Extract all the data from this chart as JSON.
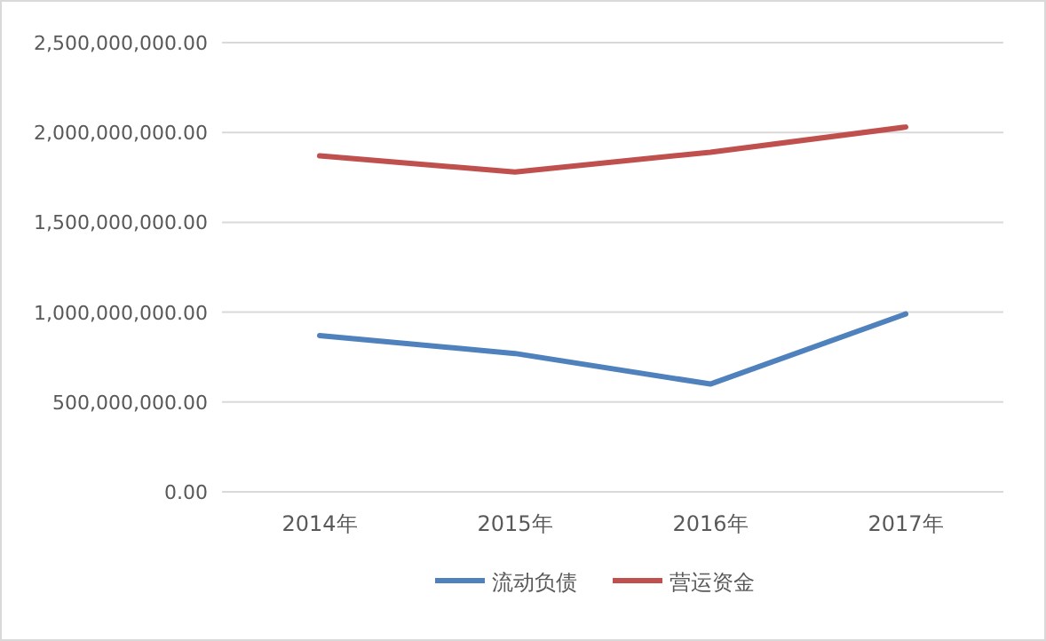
{
  "chart_data": {
    "type": "line",
    "categories": [
      "2014年",
      "2015年",
      "2016年",
      "2017年"
    ],
    "series": [
      {
        "name": "流动负债",
        "color": "#4f81bd",
        "values": [
          870000000,
          770000000,
          600000000,
          990000000
        ]
      },
      {
        "name": "营运资金",
        "color": "#c0504d",
        "values": [
          1870000000,
          1780000000,
          1890000000,
          2030000000
        ]
      }
    ],
    "ylim": [
      0,
      2500000000
    ],
    "yticks": [
      {
        "value": 0,
        "label": "0.00"
      },
      {
        "value": 500000000,
        "label": "500,000,000.00"
      },
      {
        "value": 1000000000,
        "label": "1,000,000,000.00"
      },
      {
        "value": 1500000000,
        "label": "1,500,000,000.00"
      },
      {
        "value": 2000000000,
        "label": "2,000,000,000.00"
      },
      {
        "value": 2500000000,
        "label": "2,500,000,000.00"
      }
    ],
    "grid": "y",
    "legend": "bottom",
    "marker": "none",
    "line_style": "solid"
  }
}
